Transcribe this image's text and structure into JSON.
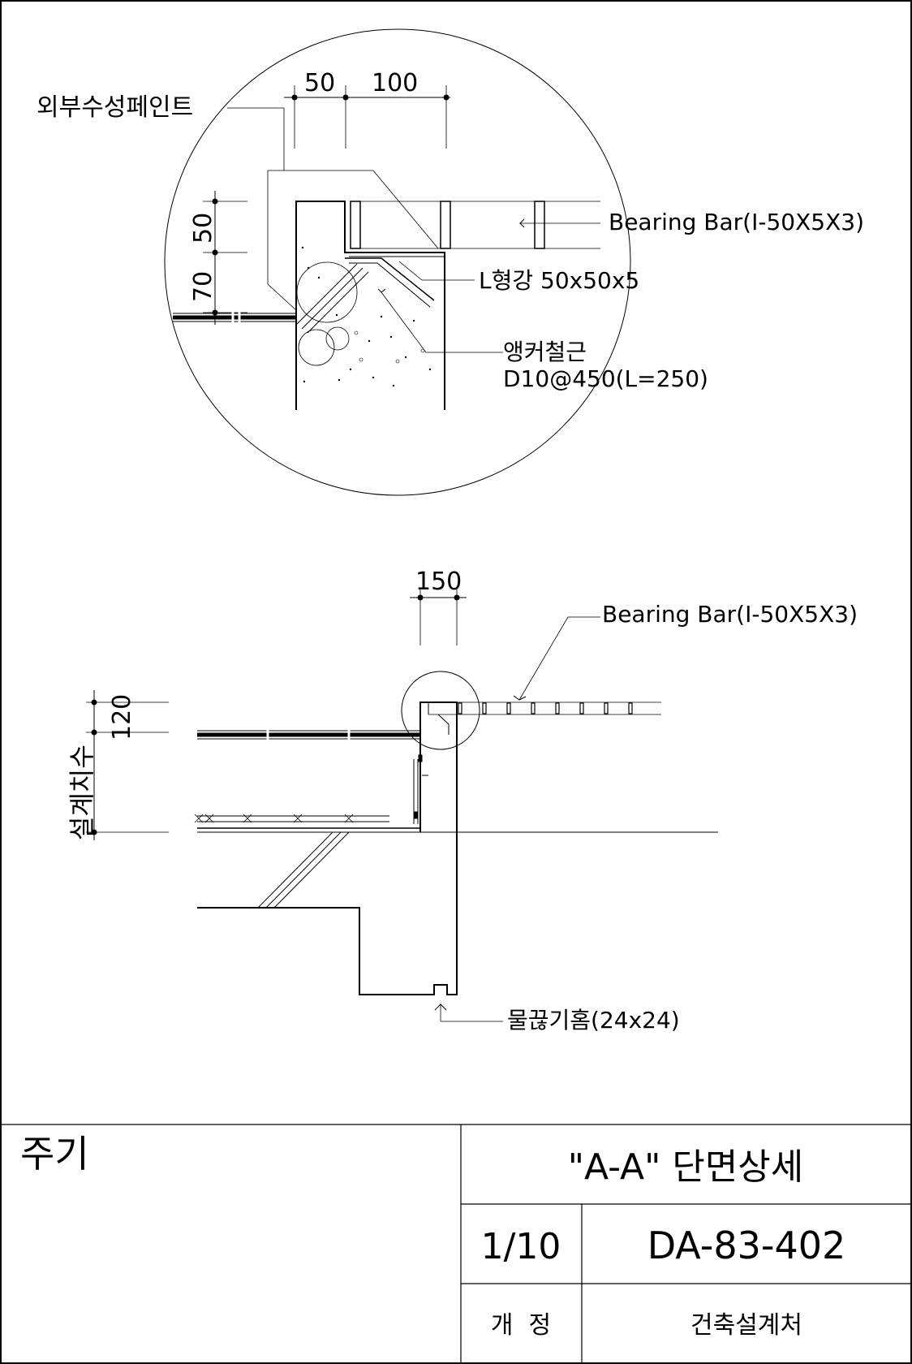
{
  "detail": {
    "dims_top": [
      "50",
      "100"
    ],
    "dims_left": [
      "50",
      "70"
    ],
    "label_paint": "외부수성페인트",
    "label_bearing_bar": "Bearing Bar(I-50X5X3)",
    "label_angle": "L형강 50x50x5",
    "label_anchor_1": "앵커철근",
    "label_anchor_2": "D10@450(L=250)"
  },
  "section": {
    "dim_top": "150",
    "dim_left": "120",
    "label_design_dim": "설계치수",
    "label_bearing_bar": "Bearing Bar(I-50X5X3)",
    "label_drip": "물끊기홈(24x24)"
  },
  "title_block": {
    "notes_label": "주기",
    "drawing_title": "\"A-A\" 단면상세",
    "scale": "1/10",
    "drawing_no": "DA-83-402",
    "revision_label": "개  정",
    "office": "건축설계처"
  }
}
